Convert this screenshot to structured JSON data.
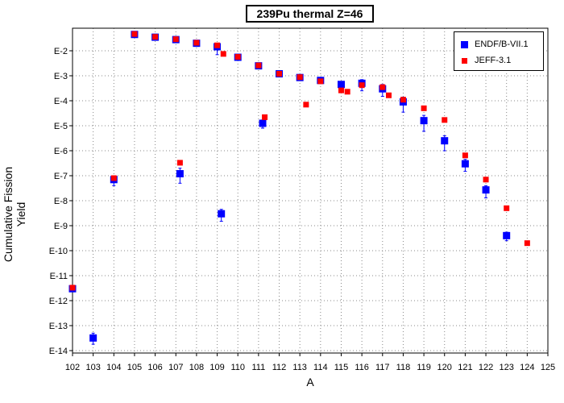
{
  "chart_data": {
    "type": "scatter",
    "title": "239Pu thermal Z=46",
    "xlabel": "A",
    "ylabel": "Cumulative Fission Yield",
    "xlim": [
      102,
      125
    ],
    "ylim": [
      1e-14,
      0.1
    ],
    "yscale": "log",
    "grid": true,
    "legend_position": "top-right",
    "x_ticks": [
      102,
      103,
      104,
      105,
      106,
      107,
      108,
      109,
      110,
      111,
      112,
      113,
      114,
      115,
      116,
      117,
      118,
      119,
      120,
      121,
      122,
      123,
      124,
      125
    ],
    "y_ticks": [
      {
        "label": "E-2",
        "value": 0.01
      },
      {
        "label": "E-3",
        "value": 0.001
      },
      {
        "label": "E-4",
        "value": 0.0001
      },
      {
        "label": "E-5",
        "value": 1e-05
      },
      {
        "label": "E-6",
        "value": 1e-06
      },
      {
        "label": "E-7",
        "value": 1e-07
      },
      {
        "label": "E-8",
        "value": 1e-08
      },
      {
        "label": "E-9",
        "value": 1e-09
      },
      {
        "label": "E-10",
        "value": 1e-10
      },
      {
        "label": "E-11",
        "value": 1e-11
      },
      {
        "label": "E-12",
        "value": 1e-12
      },
      {
        "label": "E-13",
        "value": 1e-13
      },
      {
        "label": "E-14",
        "value": 1e-14
      }
    ],
    "series": [
      {
        "name": "ENDF/B-VII.1",
        "color": "#0000ff",
        "marker": "square",
        "points": [
          {
            "x": 102,
            "y": 3e-12,
            "lo": 2.5e-12,
            "hi": 3.5e-12
          },
          {
            "x": 103,
            "y": 3.2e-14,
            "lo": 1.8e-14,
            "hi": 5e-14
          },
          {
            "x": 104,
            "y": 7e-08,
            "lo": 4e-08,
            "hi": 1e-07
          },
          {
            "x": 105,
            "y": 0.045,
            "lo": 0.04,
            "hi": 0.05
          },
          {
            "x": 106,
            "y": 0.035,
            "lo": 0.032,
            "hi": 0.038
          },
          {
            "x": 107,
            "y": 0.028,
            "lo": 0.025,
            "hi": 0.031
          },
          {
            "x": 107.2,
            "y": 1.2e-07,
            "lo": 5e-08,
            "hi": 2e-07
          },
          {
            "x": 108,
            "y": 0.02,
            "lo": 0.018,
            "hi": 0.023
          },
          {
            "x": 109,
            "y": 0.0145,
            "lo": 0.007,
            "hi": 0.02
          },
          {
            "x": 109.2,
            "y": 3e-09,
            "lo": 1.5e-09,
            "hi": 4.5e-09
          },
          {
            "x": 110,
            "y": 0.0055,
            "lo": 0.005,
            "hi": 0.006
          },
          {
            "x": 111,
            "y": 0.0025,
            "lo": 0.0023,
            "hi": 0.0027
          },
          {
            "x": 111.2,
            "y": 1.25e-05,
            "lo": 8e-06,
            "hi": 1.7e-05
          },
          {
            "x": 112,
            "y": 0.0012,
            "lo": 0.0011,
            "hi": 0.0013
          },
          {
            "x": 113,
            "y": 0.00085,
            "lo": 0.00078,
            "hi": 0.00092
          },
          {
            "x": 114,
            "y": 0.00065,
            "lo": 0.0006,
            "hi": 0.00071
          },
          {
            "x": 115,
            "y": 0.00045,
            "lo": 0.00041,
            "hi": 0.0005
          },
          {
            "x": 116,
            "y": 0.0005,
            "lo": 0.00025,
            "hi": 0.0007
          },
          {
            "x": 117,
            "y": 0.0003,
            "lo": 0.00015,
            "hi": 0.00045
          },
          {
            "x": 118,
            "y": 9e-05,
            "lo": 3.5e-05,
            "hi": 0.00014
          },
          {
            "x": 119,
            "y": 1.6e-05,
            "lo": 6e-06,
            "hi": 2.6e-05
          },
          {
            "x": 120,
            "y": 2.5e-06,
            "lo": 1e-06,
            "hi": 4e-06
          },
          {
            "x": 121,
            "y": 3e-07,
            "lo": 1.5e-07,
            "hi": 4.5e-07
          },
          {
            "x": 122,
            "y": 2.7e-08,
            "lo": 1.3e-08,
            "hi": 4e-08
          },
          {
            "x": 123,
            "y": 4e-10,
            "lo": 2.5e-10,
            "hi": 5.5e-10
          }
        ]
      },
      {
        "name": "JEFF-3.1",
        "color": "#ff0000",
        "marker": "square",
        "points": [
          {
            "x": 102,
            "y": 3.3e-12
          },
          {
            "x": 104,
            "y": 8e-08
          },
          {
            "x": 105,
            "y": 0.047
          },
          {
            "x": 106,
            "y": 0.036
          },
          {
            "x": 107,
            "y": 0.029
          },
          {
            "x": 107.2,
            "y": 3.3e-07
          },
          {
            "x": 108,
            "y": 0.021
          },
          {
            "x": 109,
            "y": 0.0165
          },
          {
            "x": 109.3,
            "y": 0.0075
          },
          {
            "x": 110,
            "y": 0.0057
          },
          {
            "x": 111,
            "y": 0.0026
          },
          {
            "x": 111.3,
            "y": 2.2e-05
          },
          {
            "x": 112,
            "y": 0.0012
          },
          {
            "x": 113,
            "y": 0.00088
          },
          {
            "x": 113.3,
            "y": 7e-05
          },
          {
            "x": 114,
            "y": 0.0006
          },
          {
            "x": 115,
            "y": 0.00026
          },
          {
            "x": 115.3,
            "y": 0.00023
          },
          {
            "x": 116,
            "y": 0.00042
          },
          {
            "x": 117,
            "y": 0.00035
          },
          {
            "x": 117.3,
            "y": 0.000165
          },
          {
            "x": 118,
            "y": 0.00011
          },
          {
            "x": 119,
            "y": 5e-05
          },
          {
            "x": 120,
            "y": 1.7e-05
          },
          {
            "x": 121,
            "y": 6.5e-07
          },
          {
            "x": 122,
            "y": 7e-08
          },
          {
            "x": 123,
            "y": 5e-09
          },
          {
            "x": 124,
            "y": 2e-10
          }
        ]
      }
    ]
  }
}
